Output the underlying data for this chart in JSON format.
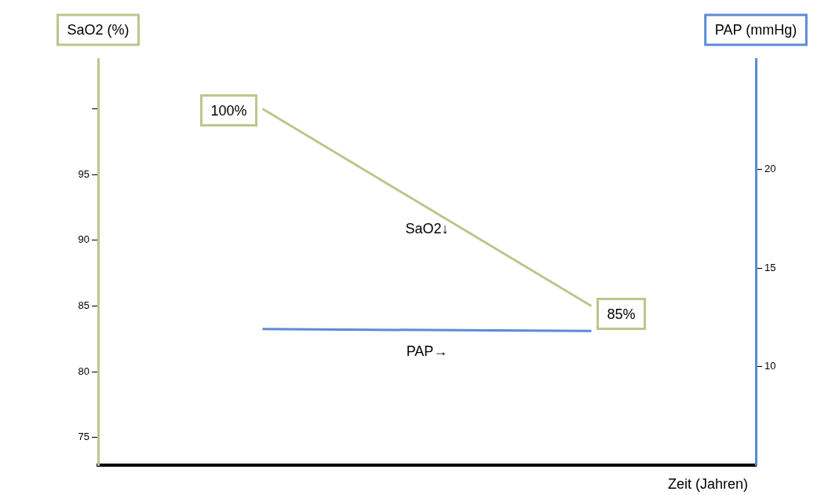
{
  "chart_data": {
    "type": "line",
    "ylabel": "SaO2 (%)",
    "y2label": "PAP (mmHg)",
    "xlabel": "Zeit (Jahren)",
    "categories": [
      null,
      null
    ],
    "series": [
      {
        "name": "SaO2↓",
        "color": "#b7c98c",
        "values": [
          100,
          85
        ],
        "value_labels": [
          "100%",
          "85%"
        ]
      },
      {
        "name": "PAP→",
        "color": "#5b8bd6",
        "values": [
          11.9,
          11.8
        ],
        "axis": "y2"
      }
    ],
    "ylim": [
      72.9,
      103.8
    ],
    "yticks": [
      75,
      80,
      85,
      90,
      95,
      {
        "value": 100,
        "label": null
      }
    ],
    "y2lim": [
      5,
      25.6
    ],
    "y2ticks": [
      10,
      15,
      20
    ],
    "grid": false,
    "legend": false,
    "marker": "none",
    "line_style": "solid"
  }
}
